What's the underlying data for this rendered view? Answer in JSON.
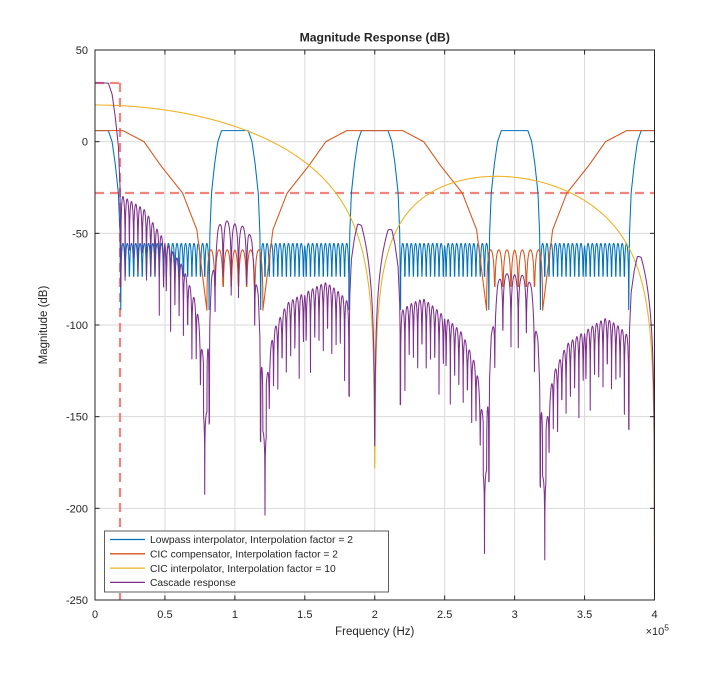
{
  "chart_data": {
    "type": "line",
    "title": "Magnitude Response (dB)",
    "xlabel": "Frequency (Hz)",
    "ylabel": "Magnitude (dB)",
    "x_multiplier_base": "×10",
    "x_multiplier_exp": "5",
    "xlim_e5": [
      0,
      4
    ],
    "ylim": [
      -250,
      50
    ],
    "grid": true,
    "x_ticks": [
      0,
      0.5,
      1,
      1.5,
      2,
      2.5,
      3,
      3.5,
      4
    ],
    "x_tick_labels": [
      "0",
      "0.5",
      "1",
      "1.5",
      "2",
      "2.5",
      "3",
      "3.5",
      "4"
    ],
    "y_ticks": [
      50,
      0,
      -50,
      -100,
      -150,
      -200,
      -250
    ],
    "y_tick_labels": [
      "50",
      "0",
      "-50",
      "-100",
      "-150",
      "-200",
      "-250"
    ],
    "colors": {
      "blue": "#0072BD",
      "orange": "#D95319",
      "yellow": "#EDB120",
      "purple": "#7E2F8E",
      "mask_red": "#ef6e69",
      "grid": "#dadada",
      "axis": "#262626"
    },
    "legend": {
      "position": "southwest",
      "entries": [
        {
          "label": "Lowpass interpolator, Interpolation factor = 2",
          "color": "#0072BD"
        },
        {
          "label": "CIC compensator, Interpolation factor = 2",
          "color": "#D95319"
        },
        {
          "label": "CIC interpolator, Interpolation factor = 10",
          "color": "#EDB120"
        },
        {
          "label": "Cascade response",
          "color": "#7E2F8E"
        }
      ]
    },
    "series": [
      {
        "name": "Lowpass interpolator, Interpolation factor = 2",
        "slug": "lowpass-interpolator",
        "color": "#0072BD",
        "model": {
          "type": "periodic_lowpass",
          "period": 1.0,
          "pass_halfwidth": 0.095,
          "null_halfwidth": 0.185,
          "pass_db": 6.02,
          "stop_db": -55.5,
          "tooth_spacing": 0.0305,
          "tooth_floor_db": -18,
          "transition_anchors": [
            [
              0,
              6.02
            ],
            [
              0.3,
              0
            ],
            [
              0.55,
              -12
            ],
            [
              0.8,
              -28
            ],
            [
              0.93,
              -50
            ],
            [
              1,
              -95
            ]
          ]
        }
      },
      {
        "name": "CIC compensator, Interpolation factor = 2",
        "slug": "cic-compensator",
        "color": "#D95319",
        "model": {
          "type": "periodic_lowpass",
          "period": 2.0,
          "pass_halfwidth": 0.2,
          "null_halfwidth": 0.8,
          "pass_db": 6.02,
          "stop_db": -59,
          "tooth_spacing": 0.058,
          "tooth_floor_db": -20,
          "transition_anchors": [
            [
              0,
              6.02
            ],
            [
              0.25,
              0
            ],
            [
              0.45,
              -13
            ],
            [
              0.71,
              -28
            ],
            [
              0.88,
              -48
            ],
            [
              1,
              -92
            ]
          ]
        }
      },
      {
        "name": "CIC interpolator, Interpolation factor = 10",
        "slug": "cic-interpolator",
        "color": "#EDB120",
        "model": {
          "type": "cic",
          "dc_db": 20,
          "R": 10,
          "stages": 3,
          "null_period": 2.0,
          "notch_floor_db": -178,
          "sidelobe_peak_db": -20,
          "sidelobe_peak_f_e5": 3.0
        }
      },
      {
        "name": "Cascade response",
        "slug": "cascade-response",
        "color": "#7E2F8E",
        "model": {
          "type": "cascade_sum",
          "of": [
            0,
            1,
            2
          ],
          "deep_tooth_floor_db": -45,
          "peak_db": 32,
          "floor_db": -248
        }
      }
    ],
    "mask": {
      "color": "#ef6e69",
      "style": "dashed",
      "passband_edge_f_e5": 0.179,
      "passband_top_db": 32,
      "stopband_level_db": -28,
      "segments": [
        {
          "kind": "h",
          "f1": 0,
          "f2": 0.179,
          "db": 32
        },
        {
          "kind": "v",
          "f": 0.179,
          "db1": 32,
          "db2": -250
        },
        {
          "kind": "h",
          "f1": 0,
          "f2": 4,
          "db": -28
        }
      ]
    }
  }
}
